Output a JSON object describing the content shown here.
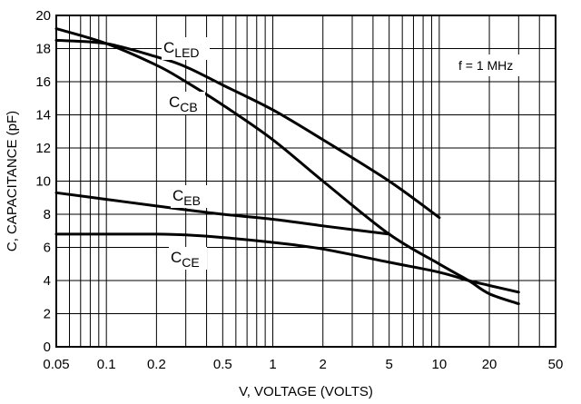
{
  "chart_data": {
    "type": "line",
    "xscale": "log",
    "xlim": [
      0.05,
      50
    ],
    "ylim": [
      0,
      20
    ],
    "xlabel": "V, VOLTAGE (VOLTS)",
    "ylabel": "C, CAPACITANCE (pF)",
    "x_ticks": [
      "0.05",
      "0.1",
      "0.2",
      "0.5",
      "1",
      "2",
      "5",
      "10",
      "20",
      "50"
    ],
    "y_ticks": [
      "0",
      "2",
      "4",
      "6",
      "8",
      "10",
      "12",
      "14",
      "16",
      "18",
      "20"
    ],
    "grid": true,
    "annotation": "f = 1 MHz",
    "series": [
      {
        "name": "CLED",
        "label_main": "C",
        "label_sub": "LED",
        "x": [
          0.05,
          0.1,
          0.2,
          0.3,
          0.5,
          1,
          2,
          5,
          10
        ],
        "y": [
          18.5,
          18.3,
          17.5,
          16.9,
          15.8,
          14.3,
          12.5,
          10.0,
          7.8
        ]
      },
      {
        "name": "CCB",
        "label_main": "C",
        "label_sub": "CB",
        "x": [
          0.05,
          0.1,
          0.2,
          0.3,
          0.5,
          1,
          2,
          5,
          10,
          15,
          20,
          30
        ],
        "y": [
          19.2,
          18.3,
          17.0,
          16.0,
          14.6,
          12.5,
          10.0,
          6.8,
          5.0,
          4.0,
          3.2,
          2.6
        ]
      },
      {
        "name": "CEB",
        "label_main": "C",
        "label_sub": "EB",
        "x": [
          0.05,
          0.1,
          0.2,
          0.5,
          1,
          2,
          5
        ],
        "y": [
          9.3,
          8.9,
          8.5,
          8.0,
          7.7,
          7.3,
          6.8
        ]
      },
      {
        "name": "CCE",
        "label_main": "C",
        "label_sub": "CE",
        "x": [
          0.05,
          0.1,
          0.2,
          0.3,
          0.5,
          1,
          2,
          5,
          10,
          15,
          20,
          30
        ],
        "y": [
          6.8,
          6.8,
          6.8,
          6.75,
          6.6,
          6.3,
          5.9,
          5.1,
          4.5,
          4.0,
          3.7,
          3.3
        ]
      }
    ]
  }
}
